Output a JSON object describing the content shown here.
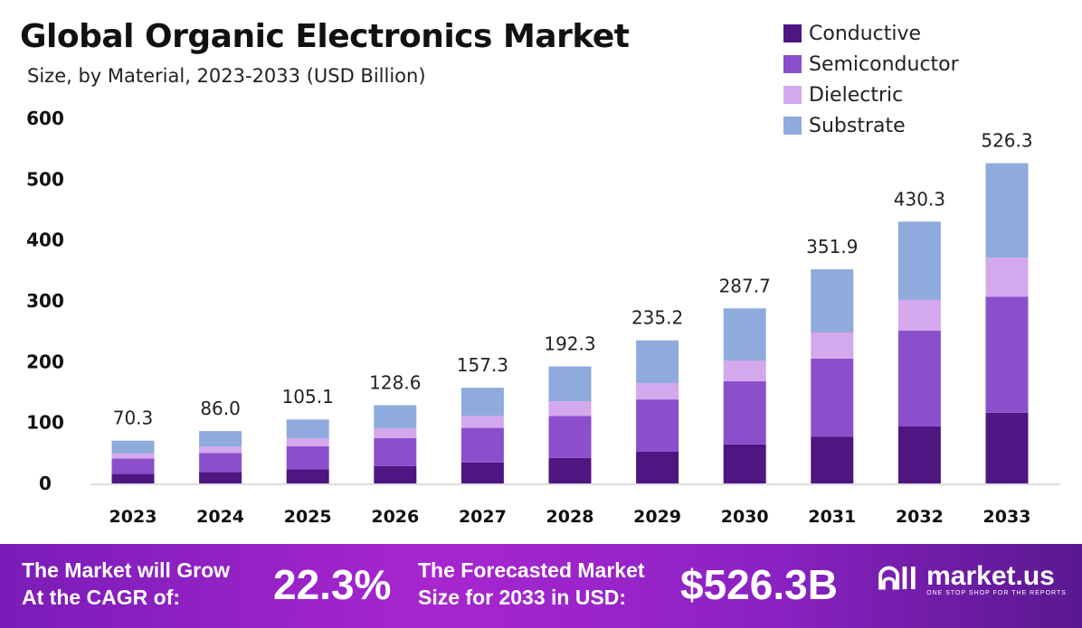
{
  "chart_data": {
    "type": "bar",
    "stacked": true,
    "title": "Global Organic Electronics Market",
    "subtitle": "Size, by Material, 2023-2033 (USD Billion)",
    "categories": [
      "2023",
      "2024",
      "2025",
      "2026",
      "2027",
      "2028",
      "2029",
      "2030",
      "2031",
      "2032",
      "2033"
    ],
    "series": [
      {
        "name": "Conductive",
        "color": "#4f1580",
        "values": [
          15.5,
          18.9,
          23.1,
          28.3,
          34.6,
          42,
          52,
          64,
          77,
          93.6,
          116
        ]
      },
      {
        "name": "Semiconductor",
        "color": "#8b4fcc",
        "values": [
          25.3,
          31.0,
          37.8,
          46.3,
          56.6,
          69,
          86,
          104,
          128,
          157.4,
          191
        ]
      },
      {
        "name": "Dielectric",
        "color": "#d4a8ec",
        "values": [
          8.8,
          10.8,
          13.1,
          16.1,
          19.7,
          24,
          27,
          34,
          43,
          50.6,
          64
        ]
      },
      {
        "name": "Substrate",
        "color": "#8faadc",
        "values": [
          20.7,
          25.3,
          31.1,
          37.9,
          46.4,
          57.3,
          70.2,
          85.7,
          103.9,
          128.7,
          155.3
        ]
      }
    ],
    "totals": [
      "70.3",
      "86.0",
      "105.1",
      "128.6",
      "157.3",
      "192.3",
      "235.2",
      "287.7",
      "351.9",
      "430.3",
      "526.3"
    ],
    "yticks": [
      "0",
      "100",
      "200",
      "300",
      "400",
      "500",
      "600"
    ],
    "ylim": [
      0,
      600
    ],
    "grid": false,
    "legend": "top-right"
  },
  "footer": {
    "cagr_label_1": "The Market will Grow",
    "cagr_label_2": "At the CAGR of:",
    "cagr_value": "22.3%",
    "size_label_1": "The Forecasted Market",
    "size_label_2": "Size for 2033 in USD:",
    "size_value": "$526.3B",
    "brand": "market.us",
    "tagline": "ONE STOP SHOP FOR THE REPORTS"
  }
}
